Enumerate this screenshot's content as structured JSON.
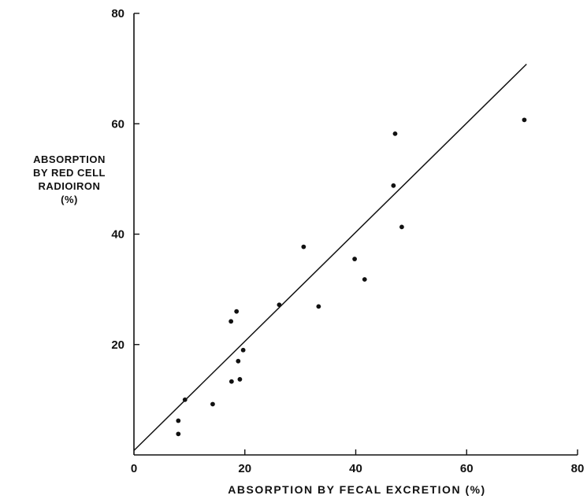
{
  "chart_data": {
    "type": "scatter",
    "title": "",
    "xlabel": "ABSORPTION BY FECAL EXCRETION (%)",
    "ylabel_lines": [
      "ABSORPTION",
      "BY RED CELL",
      "RADIOIRON",
      "(%)"
    ],
    "xlim": [
      0,
      80
    ],
    "ylim": [
      0,
      80
    ],
    "x_ticks": [
      0,
      20,
      40,
      60,
      80
    ],
    "y_ticks": [
      20,
      40,
      60,
      80
    ],
    "grid": false,
    "colors": {
      "ink": "#111111"
    },
    "series": [
      {
        "points": [
          {
            "x": 8,
            "y": 3.8
          },
          {
            "x": 8,
            "y": 6.2
          },
          {
            "x": 9.2,
            "y": 10
          },
          {
            "x": 14.2,
            "y": 9.2
          },
          {
            "x": 17.5,
            "y": 24.2
          },
          {
            "x": 17.6,
            "y": 13.3
          },
          {
            "x": 18.5,
            "y": 26
          },
          {
            "x": 18.8,
            "y": 17
          },
          {
            "x": 19.1,
            "y": 13.7
          },
          {
            "x": 19.7,
            "y": 19
          },
          {
            "x": 26.2,
            "y": 27.2
          },
          {
            "x": 30.6,
            "y": 37.7
          },
          {
            "x": 33.3,
            "y": 26.9
          },
          {
            "x": 39.8,
            "y": 35.5
          },
          {
            "x": 41.6,
            "y": 31.8
          },
          {
            "x": 46.8,
            "y": 48.8
          },
          {
            "x": 47.1,
            "y": 58.2
          },
          {
            "x": 48.3,
            "y": 41.3
          },
          {
            "x": 70.4,
            "y": 60.7
          }
        ]
      }
    ],
    "fit_line": {
      "x1": 0,
      "y1": 0.8,
      "x2": 70.8,
      "y2": 70.8
    }
  }
}
